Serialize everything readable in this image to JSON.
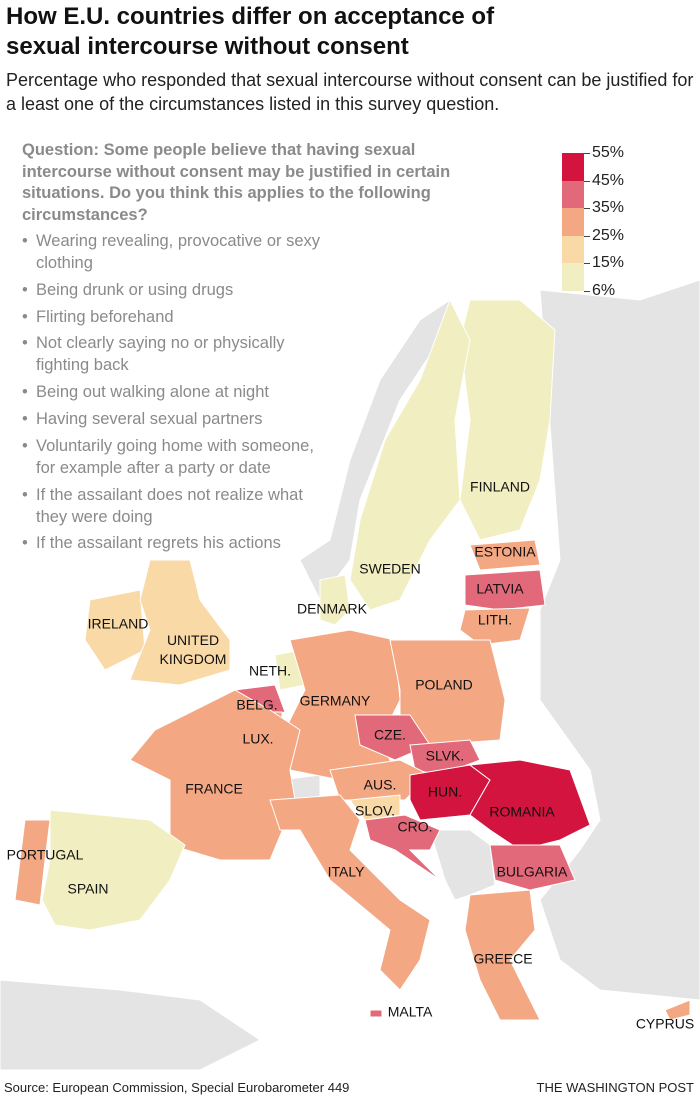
{
  "header": {
    "title": "How E.U. countries differ on acceptance of sexual intercourse without consent",
    "subtitle": "Percentage who responded that sexual intercourse without consent can be justified for a least one of the circumstances listed in this survey question."
  },
  "question": {
    "text": "Question: Some people believe that having sexual intercourse without consent may be justified in certain situations. Do you think this applies to the following circumstances?",
    "items": [
      "Wearing revealing, provocative or sexy clothing",
      "Being drunk or using drugs",
      "Flirting beforehand",
      "Not clearly saying no or physically fighting back",
      "Being out walking alone at night",
      "Having several sexual partners",
      "Voluntarily going home with someone, for example after a party or date",
      "If the assailant does not realize what they were doing",
      "If the assailant regrets his actions"
    ]
  },
  "legend": {
    "labels": [
      "55%",
      "45%",
      "35%",
      "25%",
      "15%",
      "6%"
    ],
    "colors": [
      "#d2143f",
      "#e2697a",
      "#f3a783",
      "#f9d9a6",
      "#f1efc2"
    ]
  },
  "countries": [
    {
      "label": "FINLAND",
      "color": "#f1efc2"
    },
    {
      "label": "SWEDEN",
      "color": "#f1efc2"
    },
    {
      "label": "ESTONIA",
      "color": "#f3a783"
    },
    {
      "label": "LATVIA",
      "color": "#e2697a"
    },
    {
      "label": "LITH.",
      "color": "#f3a783"
    },
    {
      "label": "DENMARK",
      "color": "#f1efc2"
    },
    {
      "label": "IRELAND",
      "color": "#f9d9a6"
    },
    {
      "label": "UNITED KINGDOM",
      "color": "#f9d9a6"
    },
    {
      "label": "NETH.",
      "color": "#f1efc2"
    },
    {
      "label": "BELG.",
      "color": "#e2697a"
    },
    {
      "label": "LUX.",
      "color": "#f3a783"
    },
    {
      "label": "GERMANY",
      "color": "#f3a783"
    },
    {
      "label": "POLAND",
      "color": "#f3a783"
    },
    {
      "label": "CZE.",
      "color": "#e2697a"
    },
    {
      "label": "SLVK.",
      "color": "#e2697a"
    },
    {
      "label": "AUS.",
      "color": "#f3a783"
    },
    {
      "label": "HUN.",
      "color": "#d2143f"
    },
    {
      "label": "ROMANIA",
      "color": "#d2143f"
    },
    {
      "label": "SLOV.",
      "color": "#f9d9a6"
    },
    {
      "label": "CRO.",
      "color": "#e2697a"
    },
    {
      "label": "FRANCE",
      "color": "#f3a783"
    },
    {
      "label": "PORTUGAL",
      "color": "#f3a783"
    },
    {
      "label": "SPAIN",
      "color": "#f1efc2"
    },
    {
      "label": "ITALY",
      "color": "#f3a783"
    },
    {
      "label": "BULGARIA",
      "color": "#e2697a"
    },
    {
      "label": "GREECE",
      "color": "#f3a783"
    },
    {
      "label": "MALTA",
      "color": "#e2697a"
    },
    {
      "label": "CYPRUS",
      "color": "#f3a783"
    }
  ],
  "footer": {
    "source": "Source: European Commission, Special Eurobarometer 449",
    "credit": "THE WASHINGTON POST"
  }
}
